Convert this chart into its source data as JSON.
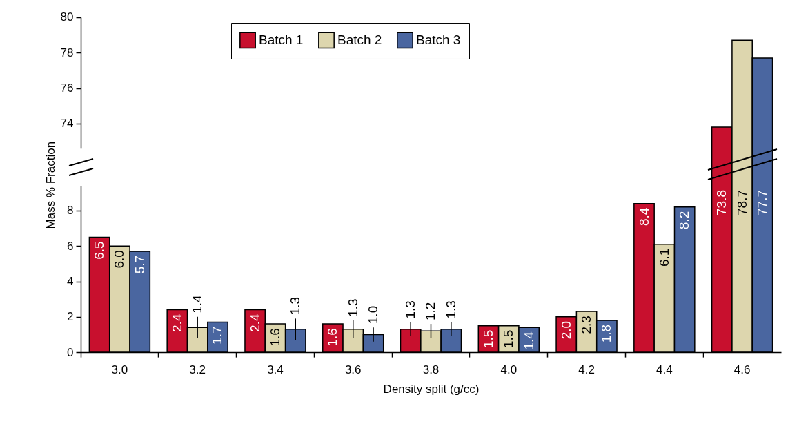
{
  "chart_data": [
    {
      "type": "bar",
      "categories": [
        "3.0",
        "3.2",
        "3.4",
        "3.6",
        "3.8",
        "4.0",
        "4.2",
        "4.4",
        "4.6"
      ],
      "series": [
        {
          "name": "Batch 1",
          "color": "#c8102e",
          "values": [
            null,
            null,
            null,
            null,
            null,
            null,
            null,
            null,
            73.8
          ]
        },
        {
          "name": "Batch 2",
          "color": "#ddd6ae",
          "values": [
            null,
            null,
            null,
            null,
            null,
            null,
            null,
            null,
            78.7
          ]
        },
        {
          "name": "Batch 3",
          "color": "#4a66a0",
          "values": [
            null,
            null,
            null,
            null,
            null,
            null,
            null,
            null,
            77.7
          ]
        }
      ],
      "ylim": [
        72.6,
        80
      ],
      "yticks": [
        74,
        76,
        78,
        80
      ],
      "tick_labels": "y",
      "legend": "top",
      "grid": false
    },
    {
      "type": "bar",
      "xlabel": "Density split (g/cc)",
      "ylabel": "Mass % Fraction",
      "categories": [
        "3.0",
        "3.2",
        "3.4",
        "3.6",
        "3.8",
        "4.0",
        "4.2",
        "4.4",
        "4.6"
      ],
      "series": [
        {
          "color": "#c8102e",
          "values": [
            6.5,
            2.4,
            2.4,
            1.6,
            1.3,
            1.5,
            2.0,
            8.4,
            null
          ],
          "value_labels": [
            "6.5",
            "2.4",
            "2.4",
            "1.6",
            "1.3",
            "1.5",
            "2.0",
            "8.4",
            "73.8"
          ],
          "errors": [
            null,
            null,
            null,
            null,
            0.4,
            null,
            null,
            null,
            null
          ]
        },
        {
          "color": "#ddd6ae",
          "values": [
            6.0,
            1.4,
            1.6,
            1.3,
            1.2,
            1.5,
            2.3,
            6.1,
            null
          ],
          "value_labels": [
            "6.0",
            "1.4",
            "1.6",
            "1.3",
            "1.2",
            "1.5",
            "2.3",
            "6.1",
            "78.7"
          ],
          "errors": [
            null,
            0.6,
            null,
            0.5,
            0.4,
            null,
            null,
            null,
            null
          ]
        },
        {
          "color": "#4a66a0",
          "values": [
            5.7,
            1.7,
            1.3,
            1.0,
            1.3,
            1.4,
            1.8,
            8.2,
            null
          ],
          "value_labels": [
            "5.7",
            "1.7",
            "1.3",
            "1.0",
            "1.3",
            "1.4",
            "1.8",
            "8.2",
            "77.7"
          ],
          "errors": [
            null,
            null,
            0.6,
            0.4,
            0.4,
            null,
            null,
            null,
            null
          ]
        }
      ],
      "ylim": [
        0,
        9.4
      ],
      "yticks": [
        0,
        2,
        4,
        6,
        8
      ],
      "grid": false
    }
  ]
}
